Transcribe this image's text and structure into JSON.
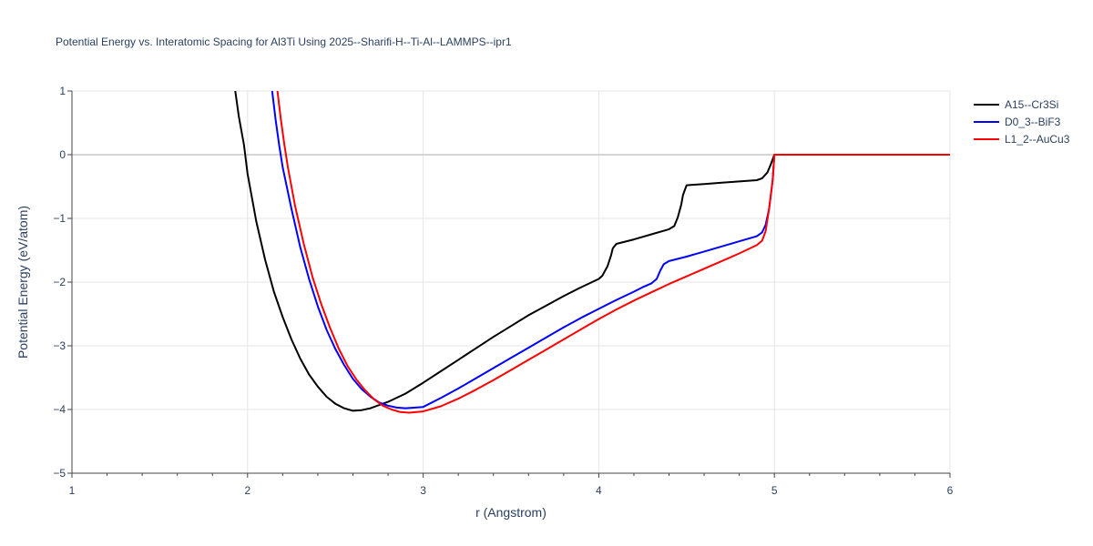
{
  "chart_data": {
    "type": "line",
    "title": "Potential Energy vs. Interatomic Spacing for Al3Ti Using 2025--Sharifi-H--Ti-Al--LAMMPS--ipr1",
    "xlabel": "r (Angstrom)",
    "ylabel": "Potential Energy (eV/atom)",
    "xlim": [
      1,
      6
    ],
    "ylim": [
      -5,
      1
    ],
    "xticks": [
      "1",
      "2",
      "3",
      "4",
      "5",
      "6"
    ],
    "yticks": [
      "1",
      "0",
      "−1",
      "−2",
      "−3",
      "−4",
      "−5"
    ],
    "grid": true,
    "legend_position": "top-right",
    "series": [
      {
        "name": "A15--Cr3Si",
        "color": "#000000",
        "points": [
          [
            1.93,
            1.0
          ],
          [
            1.95,
            0.6
          ],
          [
            1.98,
            0.15
          ],
          [
            2.0,
            -0.3
          ],
          [
            2.05,
            -1.05
          ],
          [
            2.1,
            -1.65
          ],
          [
            2.15,
            -2.15
          ],
          [
            2.2,
            -2.55
          ],
          [
            2.25,
            -2.9
          ],
          [
            2.3,
            -3.2
          ],
          [
            2.35,
            -3.45
          ],
          [
            2.4,
            -3.64
          ],
          [
            2.45,
            -3.8
          ],
          [
            2.5,
            -3.91
          ],
          [
            2.55,
            -3.98
          ],
          [
            2.6,
            -4.02
          ],
          [
            2.65,
            -4.01
          ],
          [
            2.7,
            -3.98
          ],
          [
            2.8,
            -3.88
          ],
          [
            2.9,
            -3.75
          ],
          [
            3.0,
            -3.58
          ],
          [
            3.1,
            -3.4
          ],
          [
            3.2,
            -3.22
          ],
          [
            3.3,
            -3.04
          ],
          [
            3.4,
            -2.86
          ],
          [
            3.5,
            -2.69
          ],
          [
            3.6,
            -2.52
          ],
          [
            3.7,
            -2.37
          ],
          [
            3.8,
            -2.22
          ],
          [
            3.9,
            -2.08
          ],
          [
            4.0,
            -1.95
          ],
          [
            4.02,
            -1.9
          ],
          [
            4.05,
            -1.75
          ],
          [
            4.07,
            -1.58
          ],
          [
            4.08,
            -1.47
          ],
          [
            4.1,
            -1.4
          ],
          [
            4.2,
            -1.33
          ],
          [
            4.3,
            -1.25
          ],
          [
            4.4,
            -1.17
          ],
          [
            4.43,
            -1.12
          ],
          [
            4.45,
            -0.98
          ],
          [
            4.47,
            -0.78
          ],
          [
            4.48,
            -0.63
          ],
          [
            4.5,
            -0.48
          ],
          [
            4.6,
            -0.46
          ],
          [
            4.7,
            -0.44
          ],
          [
            4.8,
            -0.42
          ],
          [
            4.9,
            -0.4
          ],
          [
            4.93,
            -0.37
          ],
          [
            4.96,
            -0.28
          ],
          [
            4.98,
            -0.15
          ],
          [
            5.0,
            0.0
          ],
          [
            6.0,
            0.0
          ]
        ]
      },
      {
        "name": "D0_3--BiF3",
        "color": "#0000ff",
        "points": [
          [
            2.14,
            1.0
          ],
          [
            2.16,
            0.55
          ],
          [
            2.18,
            0.15
          ],
          [
            2.2,
            -0.2
          ],
          [
            2.25,
            -0.85
          ],
          [
            2.3,
            -1.45
          ],
          [
            2.35,
            -1.95
          ],
          [
            2.4,
            -2.38
          ],
          [
            2.45,
            -2.75
          ],
          [
            2.5,
            -3.05
          ],
          [
            2.55,
            -3.3
          ],
          [
            2.6,
            -3.52
          ],
          [
            2.65,
            -3.68
          ],
          [
            2.7,
            -3.8
          ],
          [
            2.75,
            -3.89
          ],
          [
            2.8,
            -3.94
          ],
          [
            2.85,
            -3.97
          ],
          [
            2.9,
            -3.98
          ],
          [
            3.0,
            -3.96
          ],
          [
            3.1,
            -3.82
          ],
          [
            3.2,
            -3.67
          ],
          [
            3.3,
            -3.51
          ],
          [
            3.4,
            -3.35
          ],
          [
            3.5,
            -3.19
          ],
          [
            3.6,
            -3.03
          ],
          [
            3.7,
            -2.87
          ],
          [
            3.8,
            -2.71
          ],
          [
            3.9,
            -2.56
          ],
          [
            4.0,
            -2.42
          ],
          [
            4.1,
            -2.28
          ],
          [
            4.2,
            -2.15
          ],
          [
            4.25,
            -2.08
          ],
          [
            4.3,
            -2.02
          ],
          [
            4.33,
            -1.95
          ],
          [
            4.35,
            -1.82
          ],
          [
            4.37,
            -1.72
          ],
          [
            4.4,
            -1.67
          ],
          [
            4.5,
            -1.6
          ],
          [
            4.6,
            -1.52
          ],
          [
            4.7,
            -1.44
          ],
          [
            4.8,
            -1.36
          ],
          [
            4.9,
            -1.28
          ],
          [
            4.93,
            -1.22
          ],
          [
            4.95,
            -1.1
          ],
          [
            4.97,
            -0.85
          ],
          [
            4.99,
            -0.4
          ],
          [
            5.0,
            0.0
          ],
          [
            6.0,
            0.0
          ]
        ]
      },
      {
        "name": "L1_2--AuCu3",
        "color": "#ff0000",
        "points": [
          [
            2.17,
            1.0
          ],
          [
            2.19,
            0.55
          ],
          [
            2.21,
            0.15
          ],
          [
            2.23,
            -0.2
          ],
          [
            2.27,
            -0.8
          ],
          [
            2.32,
            -1.4
          ],
          [
            2.37,
            -1.92
          ],
          [
            2.42,
            -2.35
          ],
          [
            2.47,
            -2.72
          ],
          [
            2.52,
            -3.05
          ],
          [
            2.57,
            -3.32
          ],
          [
            2.62,
            -3.53
          ],
          [
            2.67,
            -3.7
          ],
          [
            2.72,
            -3.84
          ],
          [
            2.77,
            -3.94
          ],
          [
            2.82,
            -4.0
          ],
          [
            2.87,
            -4.04
          ],
          [
            2.92,
            -4.05
          ],
          [
            3.0,
            -4.03
          ],
          [
            3.1,
            -3.95
          ],
          [
            3.2,
            -3.83
          ],
          [
            3.3,
            -3.69
          ],
          [
            3.4,
            -3.54
          ],
          [
            3.5,
            -3.38
          ],
          [
            3.6,
            -3.22
          ],
          [
            3.7,
            -3.06
          ],
          [
            3.8,
            -2.9
          ],
          [
            3.9,
            -2.74
          ],
          [
            4.0,
            -2.58
          ],
          [
            4.1,
            -2.43
          ],
          [
            4.2,
            -2.29
          ],
          [
            4.3,
            -2.16
          ],
          [
            4.4,
            -2.03
          ],
          [
            4.5,
            -1.91
          ],
          [
            4.6,
            -1.79
          ],
          [
            4.7,
            -1.67
          ],
          [
            4.8,
            -1.55
          ],
          [
            4.9,
            -1.42
          ],
          [
            4.93,
            -1.35
          ],
          [
            4.95,
            -1.2
          ],
          [
            4.97,
            -0.85
          ],
          [
            4.99,
            -0.4
          ],
          [
            5.0,
            0.0
          ],
          [
            6.0,
            0.0
          ]
        ]
      }
    ]
  }
}
